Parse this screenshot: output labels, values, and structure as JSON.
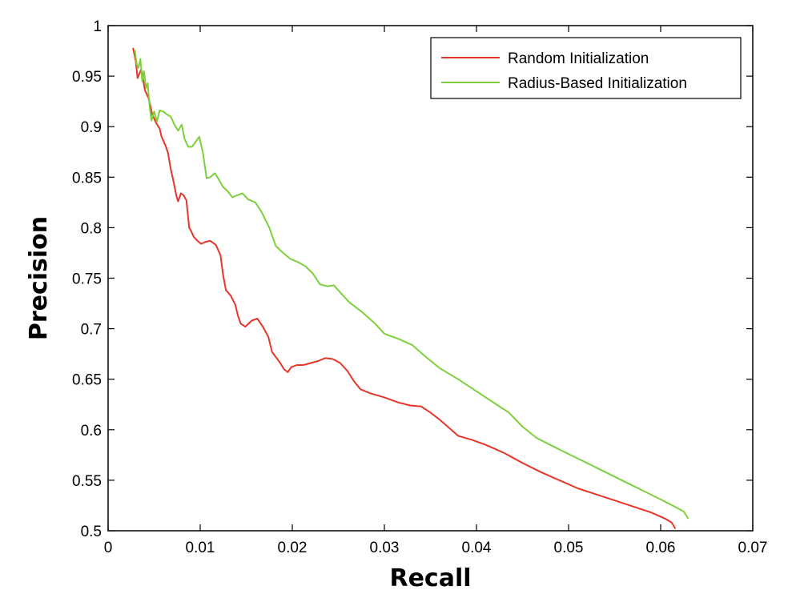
{
  "chart_data": {
    "type": "line",
    "xlabel": "Recall",
    "ylabel": "Precision",
    "xlim": [
      0,
      0.07
    ],
    "ylim": [
      0.5,
      1
    ],
    "xticks": [
      0,
      0.01,
      0.02,
      0.03,
      0.04,
      0.05,
      0.06,
      0.07
    ],
    "xtick_labels": [
      "0",
      "0.01",
      "0.02",
      "0.03",
      "0.04",
      "0.05",
      "0.06",
      "0.07"
    ],
    "yticks": [
      0.5,
      0.55,
      0.6,
      0.65,
      0.7,
      0.75,
      0.8,
      0.85,
      0.9,
      0.95,
      1
    ],
    "ytick_labels": [
      "0.5",
      "0.55",
      "0.6",
      "0.65",
      "0.7",
      "0.75",
      "0.8",
      "0.85",
      "0.9",
      "0.95",
      "1"
    ],
    "grid": false,
    "legend_position": "top-right",
    "series": [
      {
        "name": "Random Initialization",
        "color": "#e8352a",
        "points": [
          [
            0.0027,
            0.978
          ],
          [
            0.003,
            0.965
          ],
          [
            0.0032,
            0.948
          ],
          [
            0.0036,
            0.957
          ],
          [
            0.004,
            0.936
          ],
          [
            0.0044,
            0.928
          ],
          [
            0.0048,
            0.912
          ],
          [
            0.0052,
            0.904
          ],
          [
            0.0056,
            0.898
          ],
          [
            0.0058,
            0.89
          ],
          [
            0.0062,
            0.882
          ],
          [
            0.0065,
            0.874
          ],
          [
            0.0068,
            0.858
          ],
          [
            0.0071,
            0.846
          ],
          [
            0.0074,
            0.832
          ],
          [
            0.0076,
            0.826
          ],
          [
            0.0079,
            0.834
          ],
          [
            0.0082,
            0.832
          ],
          [
            0.0085,
            0.827
          ],
          [
            0.0088,
            0.8
          ],
          [
            0.009,
            0.797
          ],
          [
            0.0093,
            0.791
          ],
          [
            0.0097,
            0.787
          ],
          [
            0.0101,
            0.784
          ],
          [
            0.0106,
            0.786
          ],
          [
            0.0111,
            0.787
          ],
          [
            0.0117,
            0.783
          ],
          [
            0.0122,
            0.773
          ],
          [
            0.0125,
            0.752
          ],
          [
            0.0128,
            0.738
          ],
          [
            0.0133,
            0.733
          ],
          [
            0.0138,
            0.724
          ],
          [
            0.0141,
            0.713
          ],
          [
            0.0144,
            0.705
          ],
          [
            0.0149,
            0.702
          ],
          [
            0.0156,
            0.708
          ],
          [
            0.0162,
            0.71
          ],
          [
            0.0168,
            0.702
          ],
          [
            0.0174,
            0.692
          ],
          [
            0.0178,
            0.677
          ],
          [
            0.0182,
            0.672
          ],
          [
            0.0187,
            0.666
          ],
          [
            0.0191,
            0.66
          ],
          [
            0.0195,
            0.657
          ],
          [
            0.0199,
            0.662
          ],
          [
            0.0205,
            0.664
          ],
          [
            0.0212,
            0.664
          ],
          [
            0.022,
            0.666
          ],
          [
            0.0228,
            0.668
          ],
          [
            0.0236,
            0.671
          ],
          [
            0.0244,
            0.67
          ],
          [
            0.0252,
            0.666
          ],
          [
            0.026,
            0.658
          ],
          [
            0.0267,
            0.648
          ],
          [
            0.0274,
            0.64
          ],
          [
            0.0285,
            0.636
          ],
          [
            0.03,
            0.632
          ],
          [
            0.0315,
            0.627
          ],
          [
            0.0328,
            0.624
          ],
          [
            0.034,
            0.623
          ],
          [
            0.035,
            0.617
          ],
          [
            0.036,
            0.61
          ],
          [
            0.037,
            0.602
          ],
          [
            0.038,
            0.594
          ],
          [
            0.0395,
            0.59
          ],
          [
            0.041,
            0.585
          ],
          [
            0.043,
            0.577
          ],
          [
            0.045,
            0.567
          ],
          [
            0.047,
            0.558
          ],
          [
            0.049,
            0.55
          ],
          [
            0.051,
            0.542
          ],
          [
            0.053,
            0.536
          ],
          [
            0.055,
            0.53
          ],
          [
            0.057,
            0.524
          ],
          [
            0.059,
            0.518
          ],
          [
            0.0605,
            0.512
          ],
          [
            0.0612,
            0.508
          ],
          [
            0.0616,
            0.502
          ]
        ]
      },
      {
        "name": "Radius-Based Initialization",
        "color": "#7ecf3c",
        "points": [
          [
            0.0029,
            0.976
          ],
          [
            0.0031,
            0.962
          ],
          [
            0.0033,
            0.958
          ],
          [
            0.0035,
            0.967
          ],
          [
            0.0037,
            0.945
          ],
          [
            0.0039,
            0.955
          ],
          [
            0.0041,
            0.938
          ],
          [
            0.0043,
            0.943
          ],
          [
            0.0045,
            0.92
          ],
          [
            0.0047,
            0.906
          ],
          [
            0.005,
            0.915
          ],
          [
            0.0053,
            0.905
          ],
          [
            0.0056,
            0.916
          ],
          [
            0.006,
            0.915
          ],
          [
            0.0064,
            0.912
          ],
          [
            0.0068,
            0.91
          ],
          [
            0.0072,
            0.902
          ],
          [
            0.0076,
            0.896
          ],
          [
            0.008,
            0.902
          ],
          [
            0.0083,
            0.888
          ],
          [
            0.0087,
            0.88
          ],
          [
            0.0091,
            0.88
          ],
          [
            0.0095,
            0.885
          ],
          [
            0.0099,
            0.89
          ],
          [
            0.0103,
            0.874
          ],
          [
            0.0107,
            0.849
          ],
          [
            0.0111,
            0.85
          ],
          [
            0.0116,
            0.854
          ],
          [
            0.012,
            0.848
          ],
          [
            0.0125,
            0.84
          ],
          [
            0.013,
            0.836
          ],
          [
            0.0135,
            0.83
          ],
          [
            0.014,
            0.832
          ],
          [
            0.0146,
            0.834
          ],
          [
            0.0152,
            0.828
          ],
          [
            0.016,
            0.825
          ],
          [
            0.0167,
            0.815
          ],
          [
            0.0175,
            0.8
          ],
          [
            0.0182,
            0.782
          ],
          [
            0.019,
            0.775
          ],
          [
            0.0198,
            0.769
          ],
          [
            0.0206,
            0.766
          ],
          [
            0.0214,
            0.762
          ],
          [
            0.0222,
            0.755
          ],
          [
            0.023,
            0.744
          ],
          [
            0.0238,
            0.742
          ],
          [
            0.0245,
            0.743
          ],
          [
            0.0252,
            0.736
          ],
          [
            0.0262,
            0.726
          ],
          [
            0.0275,
            0.717
          ],
          [
            0.029,
            0.705
          ],
          [
            0.03,
            0.695
          ],
          [
            0.0315,
            0.69
          ],
          [
            0.033,
            0.684
          ],
          [
            0.0345,
            0.672
          ],
          [
            0.036,
            0.661
          ],
          [
            0.038,
            0.65
          ],
          [
            0.04,
            0.638
          ],
          [
            0.042,
            0.626
          ],
          [
            0.0435,
            0.617
          ],
          [
            0.045,
            0.603
          ],
          [
            0.0465,
            0.592
          ],
          [
            0.048,
            0.585
          ],
          [
            0.05,
            0.576
          ],
          [
            0.052,
            0.567
          ],
          [
            0.054,
            0.558
          ],
          [
            0.056,
            0.549
          ],
          [
            0.058,
            0.54
          ],
          [
            0.06,
            0.531
          ],
          [
            0.0615,
            0.524
          ],
          [
            0.0625,
            0.519
          ],
          [
            0.063,
            0.512
          ]
        ]
      }
    ]
  }
}
